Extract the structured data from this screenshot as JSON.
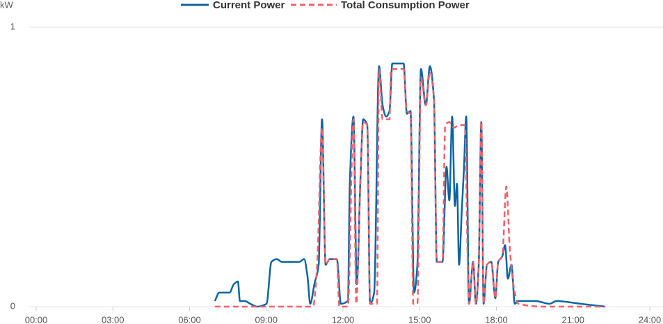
{
  "chart_data": {
    "type": "line",
    "y_label": "kW",
    "xlim": [
      0,
      24
    ],
    "xticks": [
      {
        "value": 0,
        "label": "00:00"
      },
      {
        "value": 3,
        "label": "03:00"
      },
      {
        "value": 6,
        "label": "06:00"
      },
      {
        "value": 9,
        "label": "09:00"
      },
      {
        "value": 12,
        "label": "12:00"
      },
      {
        "value": 15,
        "label": "15:00"
      },
      {
        "value": 18,
        "label": "18:00"
      },
      {
        "value": 21,
        "label": "21:00"
      },
      {
        "value": 24,
        "label": "24:00"
      }
    ],
    "ylim": [
      0,
      1
    ],
    "yticks": [
      0,
      1
    ],
    "grid": true,
    "legend": "top",
    "series": [
      {
        "name": "Current Power",
        "color": "#0a64a4",
        "dash": false,
        "x": [
          6.99,
          7.16,
          7.56,
          7.73,
          7.89,
          7.97,
          8.16,
          8.38,
          8.65,
          9.01,
          9.2,
          9.41,
          9.61,
          10.29,
          10.48,
          10.61,
          10.72,
          10.88,
          11.05,
          11.18,
          11.32,
          11.48,
          11.76,
          11.92,
          12.19,
          12.27,
          12.41,
          12.54,
          12.68,
          12.79,
          12.95,
          13.06,
          13.22,
          13.41,
          13.55,
          13.69,
          13.82,
          13.93,
          14.23,
          14.37,
          14.5,
          14.64,
          14.78,
          14.91,
          15.05,
          15.24,
          15.4,
          15.56,
          15.67,
          15.89,
          16.05,
          16.16,
          16.27,
          16.38,
          16.46,
          16.54,
          16.65,
          16.73,
          16.82,
          16.93,
          17.09,
          17.2,
          17.31,
          17.41,
          17.5,
          17.63,
          17.8,
          17.96,
          18.07,
          18.23,
          18.34,
          18.45,
          18.59,
          18.72,
          18.86,
          19.54,
          20.08,
          20.35,
          21.31,
          22.26
        ],
        "values": [
          0.02,
          0.05,
          0.05,
          0.08,
          0.09,
          0.02,
          0.02,
          0.01,
          0,
          0.01,
          0.16,
          0.17,
          0.16,
          0.16,
          0.17,
          0.11,
          0.01,
          0.08,
          0.15,
          0.67,
          0.15,
          0.17,
          0.17,
          0.01,
          0.02,
          0.45,
          0.68,
          0.08,
          0.45,
          0.67,
          0.65,
          0.01,
          0.05,
          0.86,
          0.72,
          0.68,
          0.7,
          0.87,
          0.87,
          0.87,
          0.69,
          0.7,
          0.05,
          0.15,
          0.85,
          0.72,
          0.86,
          0.74,
          0.16,
          0.16,
          0.5,
          0.38,
          0.68,
          0.36,
          0.44,
          0.15,
          0.35,
          0.49,
          0.68,
          0.01,
          0.16,
          0.01,
          0.15,
          0.66,
          0.01,
          0.15,
          0.16,
          0.03,
          0.16,
          0.18,
          0.22,
          0.1,
          0.15,
          0.01,
          0.02,
          0.02,
          0.01,
          0.02,
          0.01,
          0
        ]
      },
      {
        "name": "Total Consumption Power",
        "color": "#f0606a",
        "dash": true,
        "x": [
          6.99,
          8.11,
          9.2,
          10.83,
          10.99,
          11.18,
          11.32,
          11.48,
          11.76,
          11.86,
          12.19,
          12.41,
          12.52,
          12.68,
          12.79,
          12.95,
          13.06,
          13.33,
          13.41,
          13.55,
          13.82,
          13.88,
          14.37,
          14.5,
          14.64,
          14.75,
          14.91,
          15.05,
          15.24,
          15.4,
          15.56,
          15.67,
          15.89,
          16.0,
          16.16,
          16.33,
          16.54,
          16.76,
          16.93,
          17.09,
          17.2,
          17.31,
          17.41,
          17.5,
          17.63,
          17.8,
          17.96,
          18.07,
          18.23,
          18.39,
          18.53,
          18.72,
          18.86,
          19.81,
          22.26
        ],
        "values": [
          0,
          0,
          0,
          0,
          0.15,
          0.64,
          0.15,
          0.17,
          0.17,
          0,
          0,
          0.67,
          0.01,
          0.45,
          0.66,
          0.65,
          0.01,
          0.01,
          0.85,
          0.67,
          0.67,
          0.85,
          0.85,
          0.7,
          0.69,
          0.01,
          0.01,
          0.82,
          0.72,
          0.84,
          0.74,
          0.16,
          0.16,
          0.65,
          0.66,
          0.64,
          0.65,
          0.65,
          0.01,
          0.16,
          0.01,
          0.15,
          0.66,
          0.01,
          0.15,
          0.16,
          0.03,
          0.16,
          0.18,
          0.43,
          0.2,
          0.05,
          0.01,
          0,
          0
        ]
      }
    ]
  }
}
